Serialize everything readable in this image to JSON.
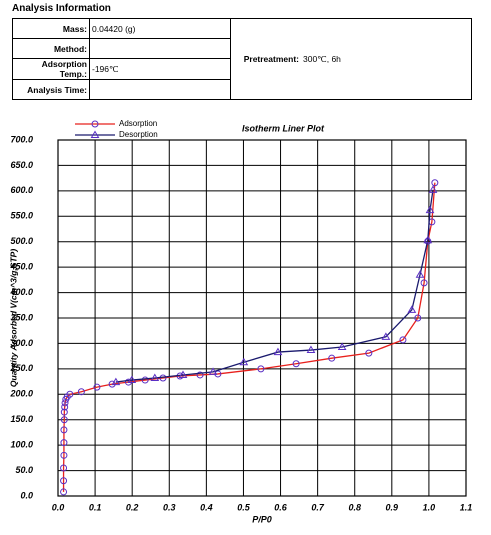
{
  "analysis": {
    "heading": "Analysis Information",
    "rows": [
      [
        "Mass:",
        "0.04420 (g)"
      ],
      [
        "Method:",
        ""
      ],
      [
        "Adsorption Temp.:",
        "-196℃"
      ],
      [
        "Analysis Time:",
        ""
      ]
    ],
    "pretreatment": [
      "Pretreatment:",
      "300℃, 6h"
    ]
  },
  "chart_data": {
    "type": "line",
    "title": "Isotherm Liner Plot",
    "x_label": "P/P0",
    "y_label": "Quantity Adsorbed V(cm^3/g,STP)",
    "xlim": [
      0,
      1.1
    ],
    "ylim": [
      0,
      700
    ],
    "xticks": [
      {
        "value": 0,
        "label": "0.0"
      },
      0.1,
      0.2,
      0.3,
      0.4,
      0.5,
      0.6,
      0.7,
      0.8,
      0.9,
      {
        "value": 1,
        "label": "1.0"
      },
      1.1
    ],
    "yticks": [
      {
        "value": 0,
        "label": "0.0"
      },
      {
        "value": 50,
        "label": "50.0"
      },
      {
        "value": 100,
        "label": "100.0"
      },
      {
        "value": 150,
        "label": "150.0"
      },
      {
        "value": 200,
        "label": "200.0"
      },
      {
        "value": 250,
        "label": "250.0"
      },
      {
        "value": 300,
        "label": "300.0"
      },
      {
        "value": 350,
        "label": "350.0"
      },
      {
        "value": 400,
        "label": "400.0"
      },
      {
        "value": 450,
        "label": "450.0"
      },
      {
        "value": 500,
        "label": "500.0"
      },
      {
        "value": 550,
        "label": "550.0"
      },
      {
        "value": 600,
        "label": "600.0"
      },
      {
        "value": 650,
        "label": "650.0"
      },
      {
        "value": 700,
        "label": "700.0"
      }
    ],
    "grid": true,
    "legend": "upper left",
    "series": [
      {
        "name": "Adsorption",
        "color": "#e8201c",
        "marker": "circle",
        "marker_color": "#5a2fc4",
        "x": [
          0.015,
          0.015,
          0.015,
          0.016,
          0.016,
          0.016,
          0.017,
          0.017,
          0.018,
          0.019,
          0.021,
          0.025,
          0.032,
          0.063,
          0.105,
          0.146,
          0.19,
          0.235,
          0.283,
          0.329,
          0.383,
          0.431,
          0.547,
          0.642,
          0.738,
          0.838,
          0.93,
          0.97,
          0.987,
          0.997,
          1.008,
          1.016
        ],
        "values": [
          8,
          30,
          55,
          80,
          105,
          130,
          150,
          165,
          175,
          183,
          190,
          195,
          200,
          205,
          214,
          220,
          224,
          228,
          232,
          236,
          238,
          240,
          250,
          260,
          271,
          281,
          307,
          350,
          419,
          501,
          539,
          616
        ]
      },
      {
        "name": "Desorption",
        "color": "#1a1a6e",
        "marker": "triangle",
        "marker_color": "#5a2fc4",
        "x": [
          1.011,
          1.003,
          0.997,
          0.976,
          0.954,
          0.884,
          0.766,
          0.682,
          0.593,
          0.501,
          0.418,
          0.337,
          0.261,
          0.199,
          0.156
        ],
        "values": [
          602,
          562,
          503,
          435,
          366,
          313,
          293,
          287,
          283,
          263,
          244,
          238,
          232,
          228,
          224
        ]
      }
    ]
  }
}
